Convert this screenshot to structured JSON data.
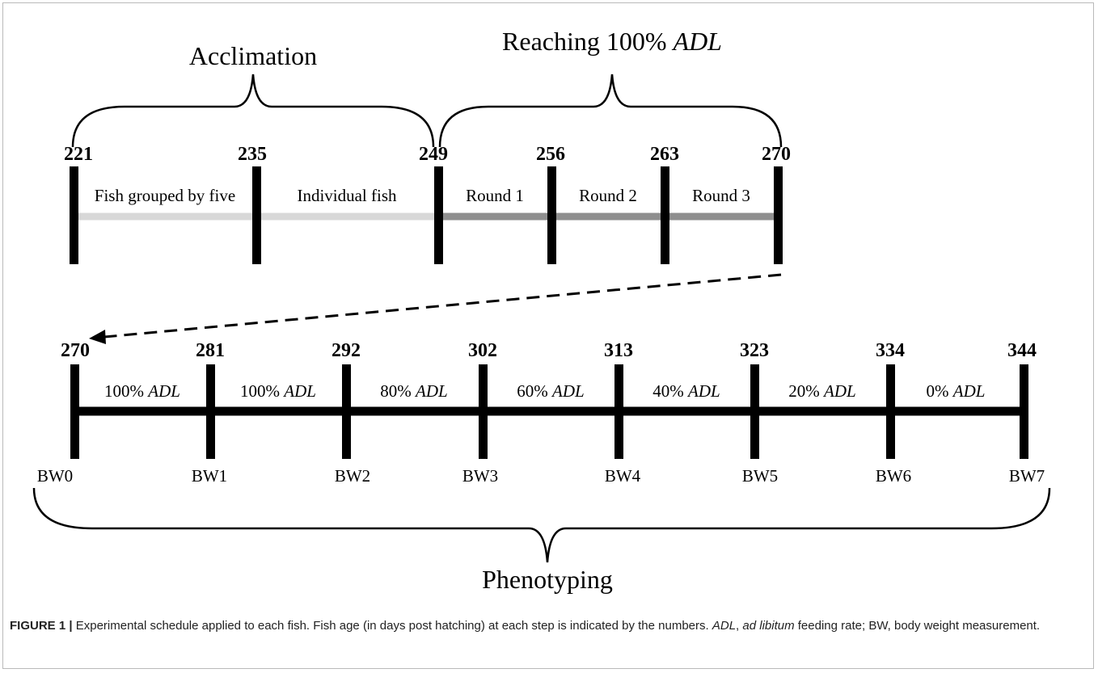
{
  "figure": {
    "top_timeline": {
      "phases": [
        {
          "label": "Acclimation",
          "italic_part": ""
        },
        {
          "label": "Reaching 100% ",
          "italic_part": "ADL"
        }
      ],
      "ticks": [
        "221",
        "235",
        "249",
        "256",
        "263",
        "270"
      ],
      "segments": [
        {
          "label": "Fish grouped by five",
          "bar_color": "#d8d8d8"
        },
        {
          "label": "Individual fish",
          "bar_color": "#d8d8d8"
        },
        {
          "label": "Round 1",
          "bar_color": "#8e8e8e"
        },
        {
          "label": "Round 2",
          "bar_color": "#8e8e8e"
        },
        {
          "label": "Round 3",
          "bar_color": "#8e8e8e"
        }
      ]
    },
    "bottom_timeline": {
      "ticks": [
        "270",
        "281",
        "292",
        "302",
        "313",
        "323",
        "334",
        "344"
      ],
      "segments": [
        {
          "label": "100% ",
          "italic_part": "ADL"
        },
        {
          "label": "100% ",
          "italic_part": "ADL"
        },
        {
          "label": "80% ",
          "italic_part": "ADL"
        },
        {
          "label": "60% ",
          "italic_part": "ADL"
        },
        {
          "label": "40% ",
          "italic_part": "ADL"
        },
        {
          "label": "20% ",
          "italic_part": "ADL"
        },
        {
          "label": "0% ",
          "italic_part": "ADL"
        }
      ],
      "measurements": [
        "BW0",
        "BW1",
        "BW2",
        "BW3",
        "BW4",
        "BW5",
        "BW6",
        "BW7"
      ],
      "bar_color": "#000000"
    },
    "bottom_bracket_label": "Phenotyping"
  },
  "caption": {
    "label": "FIGURE 1",
    "separator": " | ",
    "text_1": "Experimental schedule applied to each fish. Fish age (in days post hatching) at each step is indicated by the numbers. ",
    "adl_abbr": "ADL",
    "text_2": ", ",
    "adl_expansion": "ad libitum",
    "text_3": " feeding rate; BW, body weight measurement."
  }
}
